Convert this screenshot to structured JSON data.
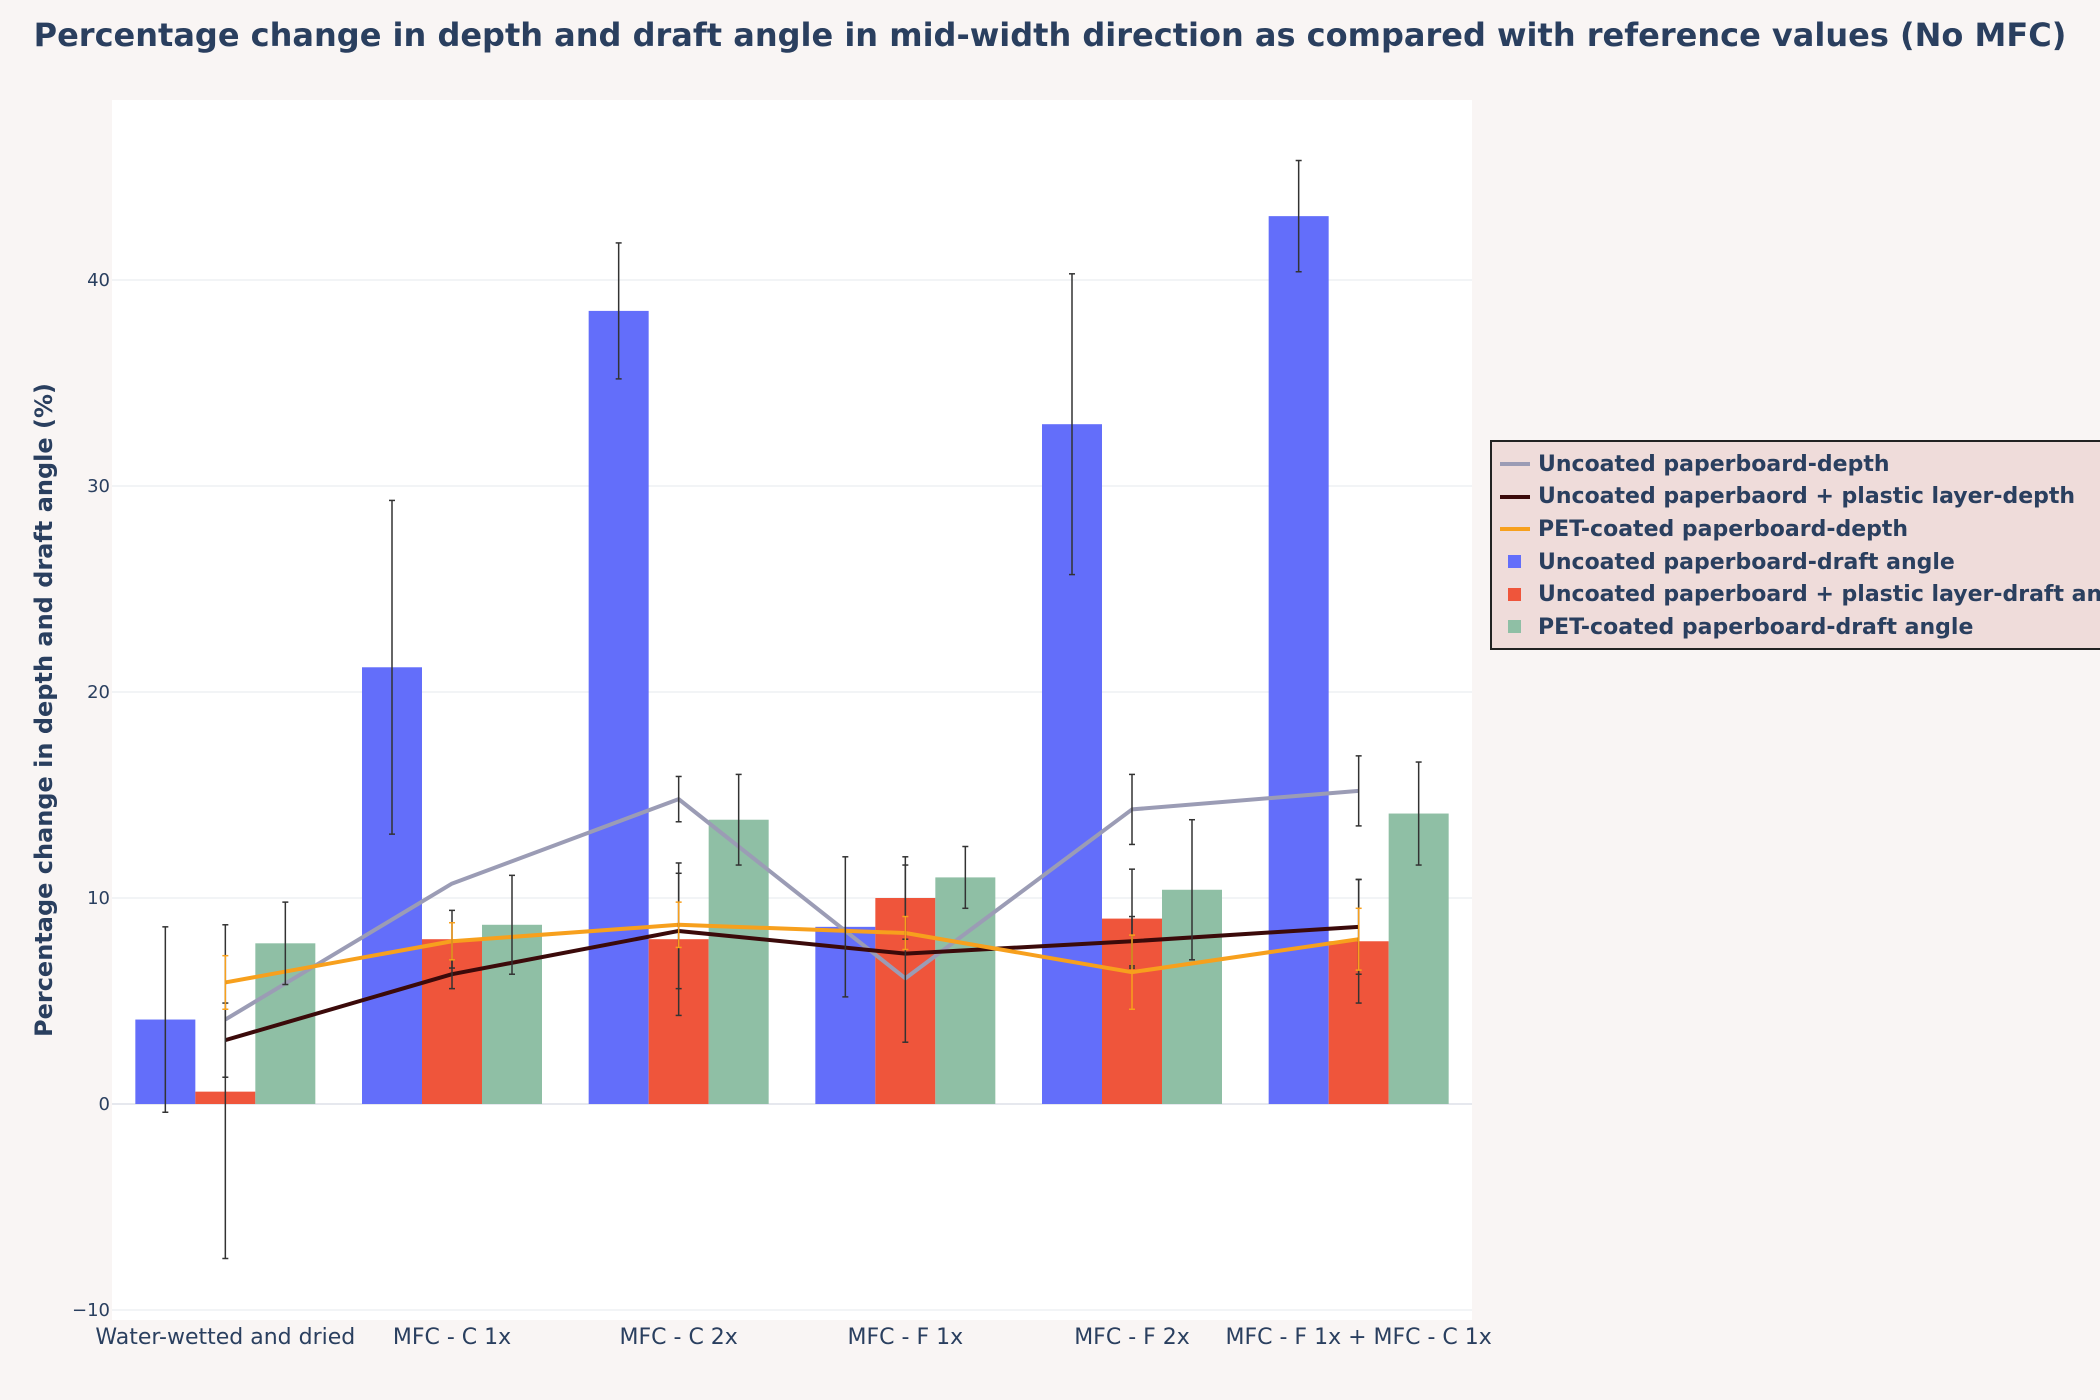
{
  "chart_data": {
    "type": "bar",
    "title": "Percentage change in depth and draft angle in mid-width direction as compared with reference values (No MFC)",
    "xlabel": "",
    "ylabel": "Percentage change in depth and draft angle (%)",
    "ylim": [
      -10,
      48
    ],
    "yticks": [
      -10,
      0,
      10,
      20,
      30,
      40
    ],
    "grid": true,
    "legend_position": "right",
    "categories": [
      "Water-wetted and dried",
      "MFC - C 1x",
      "MFC - C 2x",
      "MFC - F 1x",
      "MFC - F 2x",
      "MFC - F 1x  + MFC - C 1x"
    ],
    "bar_series": [
      {
        "name": "Uncoated paperboard-draft angle",
        "color": "#636efa",
        "values": [
          4.1,
          21.2,
          38.5,
          8.6,
          33.0,
          43.1
        ],
        "errors": [
          4.5,
          8.1,
          3.3,
          3.4,
          7.3,
          2.7
        ]
      },
      {
        "name": "Uncoated paperboard + plastic layer-draft angle",
        "color": "#ef553b",
        "values": [
          0.6,
          8.0,
          8.0,
          10.0,
          9.0,
          7.9
        ],
        "errors": [
          8.1,
          1.4,
          3.7,
          2.0,
          2.4,
          3.0
        ]
      },
      {
        "name": "PET-coated paperboard-draft angle",
        "color": "#8fbfa5",
        "values": [
          7.8,
          8.7,
          13.8,
          11.0,
          10.4,
          14.1
        ],
        "errors": [
          2.0,
          2.4,
          2.2,
          1.5,
          3.4,
          2.5
        ]
      }
    ],
    "line_series": [
      {
        "name": "Uncoated paperboard-depth",
        "color": "#9b9cb5",
        "values": [
          4.1,
          10.7,
          14.8,
          6.1,
          14.3,
          15.2
        ],
        "errors": [
          0,
          0,
          1.1,
          0,
          1.7,
          1.7
        ],
        "error_color": "#333333"
      },
      {
        "name": "Uncoated paperbaord + plastic layer-depth",
        "color": "#3b0a0a",
        "values": [
          3.1,
          6.3,
          8.4,
          7.3,
          7.9,
          8.6
        ],
        "errors": [
          1.8,
          0.7,
          2.8,
          4.3,
          1.2,
          2.3
        ],
        "error_color": "#333333"
      },
      {
        "name": "PET-coated paperboard-depth",
        "color": "#f7a01d",
        "values": [
          5.9,
          7.9,
          8.7,
          8.3,
          6.4,
          8.0
        ],
        "errors": [
          1.3,
          0.9,
          1.1,
          0.8,
          1.8,
          1.5
        ],
        "error_color": "#f7a01d"
      }
    ],
    "legend_order": [
      "Uncoated paperboard-depth",
      "Uncoated paperbaord + plastic layer-depth",
      "PET-coated paperboard-depth",
      "Uncoated paperboard-draft angle",
      "Uncoated paperboard + plastic layer-draft angle",
      "PET-coated paperboard-draft angle"
    ]
  }
}
